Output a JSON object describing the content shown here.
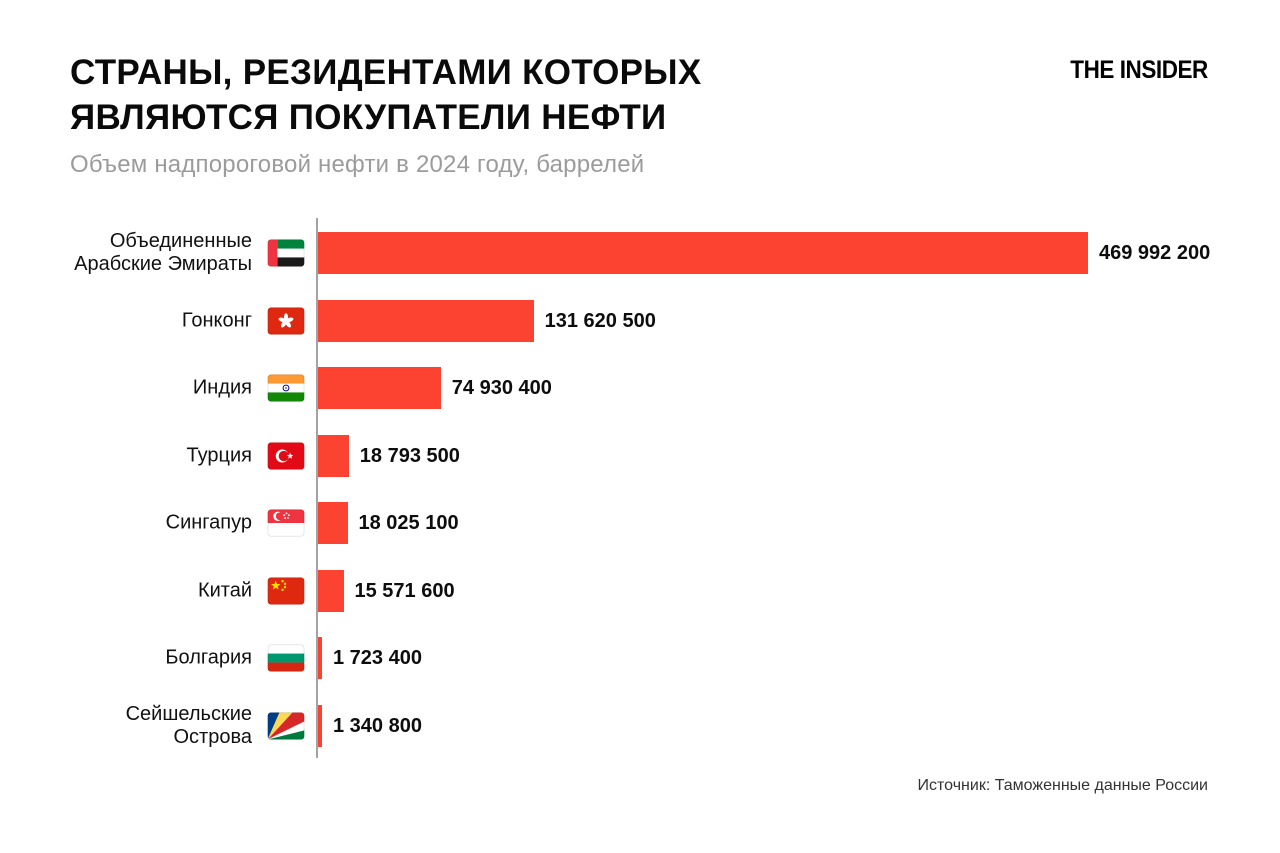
{
  "header": {
    "title_line1": "СТРАНЫ, РЕЗИДЕНТАМИ КОТОРЫХ",
    "title_line2": "ЯВЛЯЮТСЯ ПОКУПАТЕЛИ НЕФТИ",
    "subtitle": "Объем надпороговой нефти в 2024 году, баррелей",
    "logo": "THE INSIDER"
  },
  "footer": {
    "source": "Источник: Таможенные данные России"
  },
  "colors": {
    "bar": "#FC4332",
    "axis": "#A3A3A3",
    "title": "#0A0A0A",
    "subtitle": "#9B9B9B",
    "source": "#333333",
    "background": "#FFFFFF"
  },
  "chart_data": {
    "type": "bar",
    "orientation": "horizontal",
    "title": "СТРАНЫ, РЕЗИДЕНТАМИ КОТОРЫХ ЯВЛЯЮТСЯ ПОКУПАТЕЛИ НЕФТИ",
    "subtitle": "Объем надпороговой нефти в 2024 году, баррелей",
    "xlabel": "",
    "ylabel": "",
    "xlim": [
      0,
      469992200
    ],
    "grid": false,
    "legend": false,
    "categories": [
      "Объединенные Арабские Эмираты",
      "Гонконг",
      "Индия",
      "Турция",
      "Сингапур",
      "Китай",
      "Болгария",
      "Сейшельские Острова"
    ],
    "values": [
      469992200,
      131620500,
      74930400,
      18793500,
      18025100,
      15571600,
      1723400,
      1340800
    ],
    "value_labels": [
      "469 992 200",
      "131 620 500",
      "74 930 400",
      "18 793 500",
      "18 025 100",
      "15 571 600",
      "1 723 400",
      "1 340 800"
    ],
    "label_lines": [
      [
        "Объединенные",
        "Арабские Эмираты"
      ],
      [
        "Гонконг"
      ],
      [
        "Индия"
      ],
      [
        "Турция"
      ],
      [
        "Сингапур"
      ],
      [
        "Китай"
      ],
      [
        "Болгария"
      ],
      [
        "Сейшельские",
        "Острова"
      ]
    ],
    "flags": [
      "ae",
      "hk",
      "in",
      "tr",
      "sg",
      "cn",
      "bg",
      "sc"
    ]
  }
}
